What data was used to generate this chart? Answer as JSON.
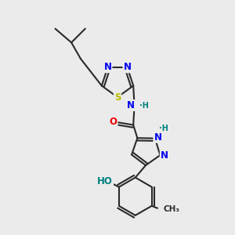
{
  "bg_color": "#ebebeb",
  "bond_color": "#2a2a2a",
  "bond_width": 1.5,
  "atom_colors": {
    "N": "#0000ee",
    "O": "#ee0000",
    "S": "#bbbb00",
    "H_label": "#008080"
  },
  "font_size_atom": 8.5,
  "font_size_small": 7.0,
  "xlim": [
    0,
    10
  ],
  "ylim": [
    0,
    10
  ]
}
